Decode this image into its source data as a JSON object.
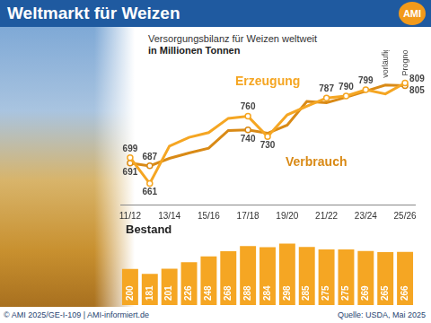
{
  "header": {
    "title": "Weltmarkt für Weizen",
    "logo": "AMI"
  },
  "footer": {
    "left": "© AMI 2025/GE-I-109 | AMI-informiert.de",
    "right": "Quelle: USDA, Mai 2025"
  },
  "chart_data": [
    {
      "type": "line",
      "title": "Versorgungsbilanz für Weizen weltweit",
      "subtitle": "in Millionen Tonnen",
      "categories": [
        "11/12",
        null,
        "13/14",
        null,
        "15/16",
        null,
        "17/18",
        null,
        "19/20",
        null,
        "21/22",
        null,
        "23/24",
        null,
        "25/26"
      ],
      "series": [
        {
          "name": "Erzeugung",
          "color": "#f5a623",
          "marker": "circle",
          "values": [
            699,
            661,
            716,
            729,
            736,
            757,
            760,
            730,
            762,
            775,
            787,
            790,
            799,
            793,
            809
          ],
          "value_labels": [
            "699",
            "661",
            null,
            null,
            null,
            null,
            "760",
            "730",
            null,
            null,
            "787",
            "790",
            "799",
            null,
            "809"
          ]
        },
        {
          "name": "Verbrauch",
          "color": "#d98a16",
          "marker": "circle",
          "values": [
            691,
            687,
            698,
            706,
            713,
            739,
            740,
            735,
            747,
            782,
            780,
            788,
            797,
            806,
            805
          ],
          "value_labels": [
            "691",
            "687",
            null,
            null,
            null,
            null,
            "740",
            null,
            null,
            null,
            null,
            null,
            null,
            null,
            "805"
          ]
        }
      ],
      "annotations": [
        {
          "text": "vorläufig",
          "at": 13
        },
        {
          "text": "Prognose",
          "at": 14
        }
      ],
      "ylim": [
        630,
        850
      ],
      "yticks": [],
      "tick_labels": "x",
      "grid": false
    },
    {
      "type": "bar",
      "title": "Bestand",
      "categories": [
        "11/12",
        null,
        "13/14",
        null,
        "15/16",
        null,
        "17/18",
        null,
        "19/20",
        null,
        "21/22",
        null,
        "23/24",
        null,
        "25/26"
      ],
      "values": [
        200,
        181,
        201,
        226,
        248,
        268,
        288,
        284,
        298,
        285,
        275,
        275,
        269,
        265,
        266
      ],
      "color": "#f5a623",
      "ylim": [
        60,
        310
      ],
      "yticks": [],
      "tick_labels": false,
      "data_labels": true,
      "grid": false
    }
  ]
}
